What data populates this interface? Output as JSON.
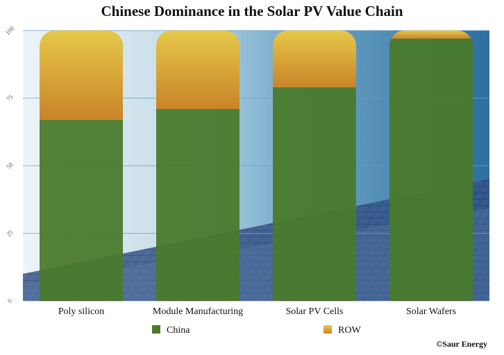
{
  "chart_data": {
    "type": "bar",
    "stacked": true,
    "title": "Chinese Dominance in the Solar PV Value Chain",
    "xlabel": "",
    "ylabel": "",
    "ylim": [
      0,
      100
    ],
    "yticks": [
      0,
      25,
      50,
      75,
      100
    ],
    "categories": [
      "Poly silicon",
      "Module Manufacturing",
      "Solar PV Cells",
      "Solar Wafers"
    ],
    "series": [
      {
        "name": "China",
        "values": [
          67,
          71,
          79,
          97
        ],
        "color": "#4a7a2c"
      },
      {
        "name": "ROW",
        "values": [
          33,
          29,
          21,
          3
        ],
        "color": "#d9a530"
      }
    ],
    "legend_position": "bottom",
    "background": "solar-panel-photo",
    "credit": "©Saur Energy"
  }
}
